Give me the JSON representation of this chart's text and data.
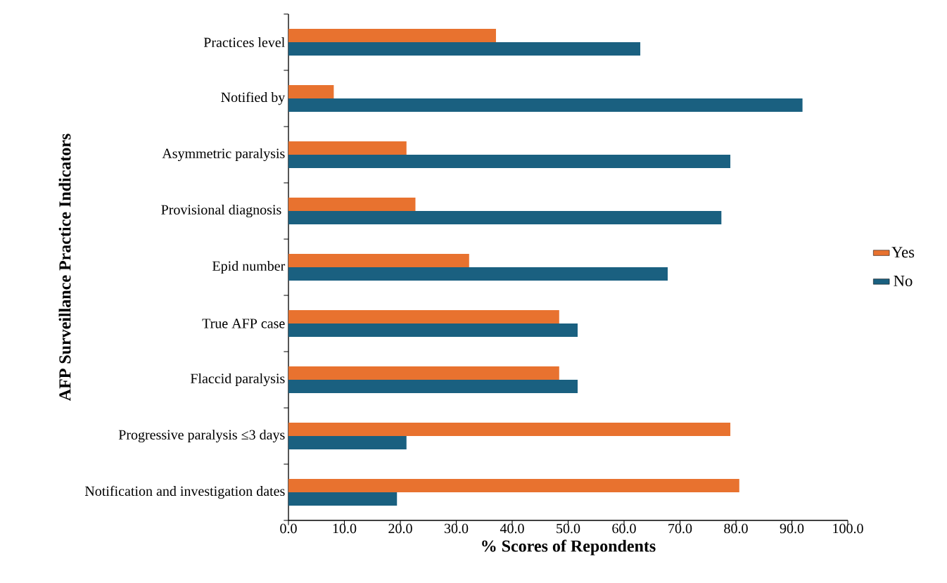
{
  "chart_data": {
    "type": "bar",
    "orientation": "horizontal",
    "xlabel": "% Scores of Repondents",
    "ylabel": "AFP Surveillance Practice Indicators",
    "categories": [
      "Practices level",
      "Notified by",
      "Asymmetric paralysis",
      "Provisional diagnosis ",
      "Epid number",
      "True AFP case",
      "Flaccid paralysis",
      "Progressive paralysis ≤3 days",
      "Notification and investigation dates"
    ],
    "series": [
      {
        "name": "Yes",
        "color": "#e8722f",
        "values": [
          37.1,
          8.1,
          21.1,
          22.7,
          32.3,
          48.4,
          48.4,
          79.0,
          80.6
        ]
      },
      {
        "name": "No",
        "color": "#1a6080",
        "values": [
          62.9,
          91.9,
          79.0,
          77.4,
          67.8,
          51.7,
          51.7,
          21.1,
          19.4
        ]
      }
    ],
    "xlim": [
      0,
      100
    ],
    "xticks": [
      {
        "value": 0,
        "label": "0.0"
      },
      {
        "value": 10,
        "label": "10.0"
      },
      {
        "value": 20,
        "label": "20.0"
      },
      {
        "value": 30,
        "label": "30.0"
      },
      {
        "value": 40,
        "label": "40.0"
      },
      {
        "value": 50,
        "label": "50.0"
      },
      {
        "value": 60,
        "label": "60.0"
      },
      {
        "value": 70,
        "label": "70.0"
      },
      {
        "value": 80,
        "label": "80.0"
      },
      {
        "value": 90,
        "label": "90.0"
      },
      {
        "value": 100,
        "label": "100.0"
      }
    ],
    "legend": "right",
    "grid": false
  }
}
